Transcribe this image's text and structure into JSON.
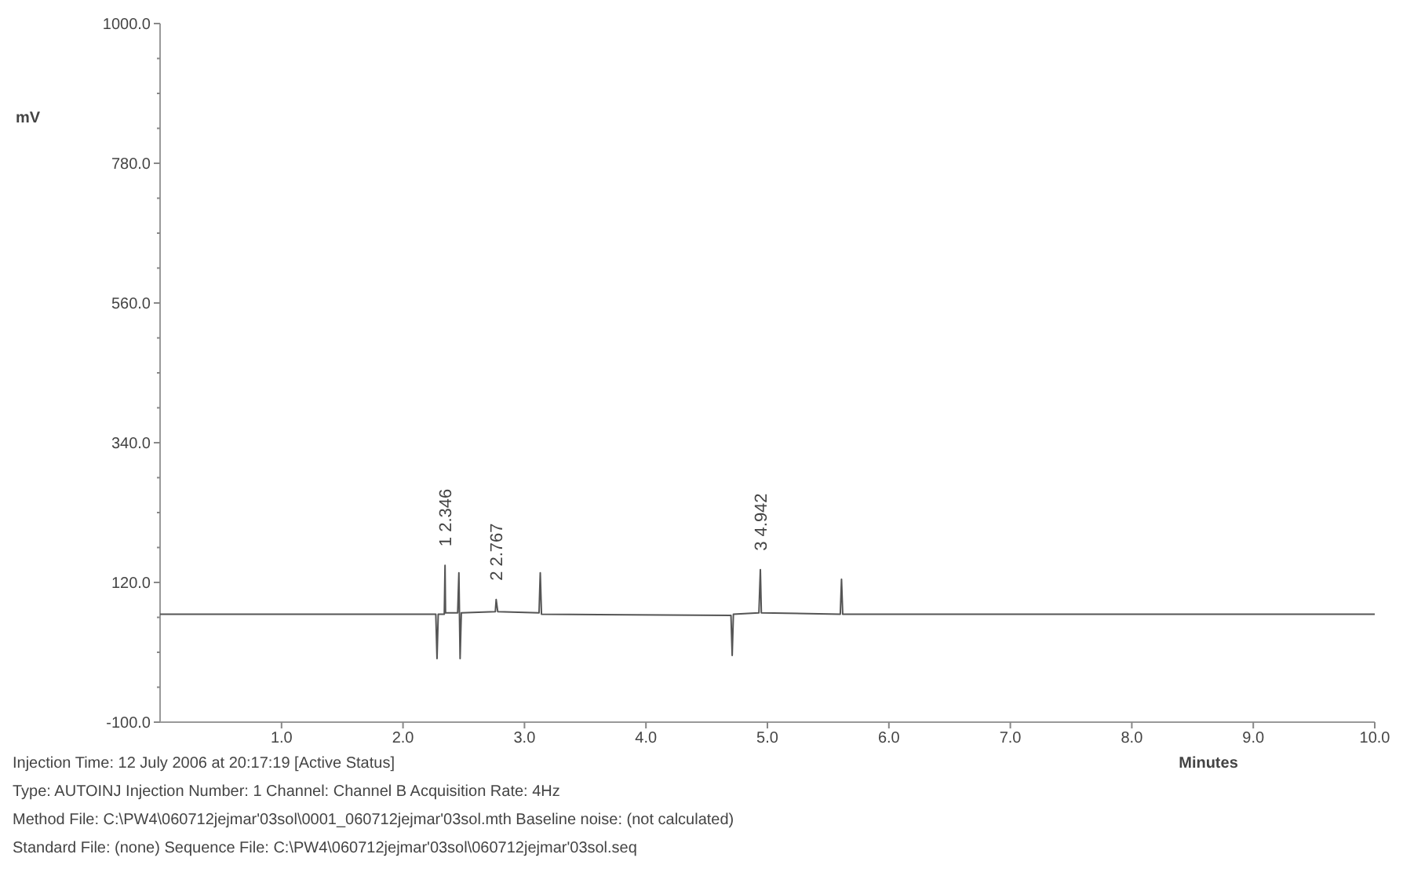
{
  "chart_data": {
    "type": "line",
    "xlabel": "Minutes",
    "ylabel": "mV",
    "xlim": [
      0,
      10
    ],
    "xticks": [
      {
        "value": 1,
        "label": "1.0"
      },
      {
        "value": 2,
        "label": "2.0"
      },
      {
        "value": 3,
        "label": "3.0"
      },
      {
        "value": 4,
        "label": "4.0"
      },
      {
        "value": 5,
        "label": "5.0"
      },
      {
        "value": 6,
        "label": "6.0"
      },
      {
        "value": 7,
        "label": "7.0"
      },
      {
        "value": 8,
        "label": "8.0"
      },
      {
        "value": 9,
        "label": "9.0"
      },
      {
        "value": 10,
        "label": "10.0"
      }
    ],
    "ylim": [
      -100,
      1000
    ],
    "yticks": [
      {
        "value": -100,
        "label": "-100.0"
      },
      {
        "value": -45,
        "label": null
      },
      {
        "value": 10,
        "label": null
      },
      {
        "value": 65,
        "label": null
      },
      {
        "value": 120,
        "label": "120.0"
      },
      {
        "value": 175,
        "label": null
      },
      {
        "value": 230,
        "label": null
      },
      {
        "value": 285,
        "label": null
      },
      {
        "value": 340,
        "label": "340.0"
      },
      {
        "value": 395,
        "label": null
      },
      {
        "value": 450,
        "label": null
      },
      {
        "value": 505,
        "label": null
      },
      {
        "value": 560,
        "label": "560.0"
      },
      {
        "value": 615,
        "label": null
      },
      {
        "value": 670,
        "label": null
      },
      {
        "value": 725,
        "label": null
      },
      {
        "value": 780,
        "label": "780.0"
      },
      {
        "value": 835,
        "label": null
      },
      {
        "value": 890,
        "label": null
      },
      {
        "value": 945,
        "label": null
      },
      {
        "value": 1000,
        "label": "1000.0"
      }
    ],
    "grid": false,
    "series": [
      {
        "color": "#555555",
        "x": [
          0,
          2.27,
          2.28,
          2.29,
          2.34,
          2.346,
          2.35,
          2.45,
          2.46,
          2.47,
          2.48,
          2.76,
          2.767,
          2.78,
          3.12,
          3.13,
          3.14,
          4.7,
          4.71,
          4.72,
          4.93,
          4.942,
          4.95,
          5.6,
          5.61,
          5.62,
          10
        ],
        "values": [
          70,
          70,
          0,
          70,
          70,
          147,
          72,
          72,
          135,
          0,
          72,
          74,
          93,
          74,
          72,
          135,
          70,
          68,
          5,
          70,
          72,
          140,
          72,
          70,
          125,
          70,
          70
        ]
      }
    ],
    "annotations": [
      {
        "text": "1 2.346",
        "x": 2.346,
        "y": 147
      },
      {
        "text": "2 2.767",
        "x": 2.767,
        "y": 93
      },
      {
        "text": "3 4.942",
        "x": 4.942,
        "y": 140
      },
      "Injection Time: 12 July 2006 at 20:17:19  [Active Status]",
      "Type: AUTOINJ   Injection Number: 1   Channel: Channel B   Acquisition Rate: 4Hz",
      "Method File: C:\\PW4\\060712jejmar'03sol\\0001_060712jejmar'03sol.mth   Baseline noise: (not calculated)",
      "Standard File: (none)   Sequence File: C:\\PW4\\060712jejmar'03sol\\060712jejmar'03sol.seq"
    ]
  }
}
